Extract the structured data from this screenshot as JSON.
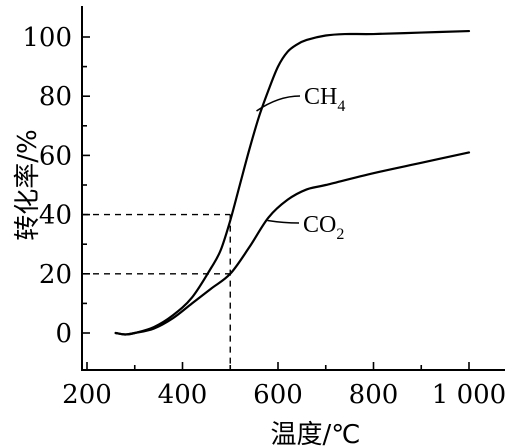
{
  "chart_data": {
    "type": "line",
    "xlabel": "温度/℃",
    "ylabel": "转化率/%",
    "xlim": [
      200,
      1000
    ],
    "ylim": [
      -3,
      105
    ],
    "x_ticks": [
      200,
      400,
      600,
      800,
      1000
    ],
    "x_tick_labels": [
      "200",
      "400",
      "600",
      "800",
      "1 000"
    ],
    "y_ticks": [
      0,
      20,
      40,
      60,
      80,
      100
    ],
    "y_tick_labels": [
      "0",
      "20",
      "40",
      "60",
      "80",
      "100"
    ],
    "grid": false,
    "series": [
      {
        "name": "CH4",
        "label_main": "CH",
        "label_sub": "4",
        "x": [
          260,
          280,
          300,
          340,
          380,
          420,
          460,
          480,
          500,
          520,
          540,
          560,
          580,
          600,
          620,
          640,
          660,
          700,
          740,
          800,
          900,
          1000
        ],
        "y": [
          0,
          -0.5,
          0,
          2,
          6,
          12,
          22,
          28,
          38,
          50,
          62,
          73,
          82,
          90,
          95,
          97.5,
          99,
          100.5,
          101,
          101,
          101.5,
          102
        ]
      },
      {
        "name": "CO2",
        "label_main": "CO",
        "label_sub": "2",
        "x": [
          260,
          280,
          300,
          340,
          380,
          420,
          460,
          500,
          540,
          580,
          620,
          660,
          700,
          800,
          900,
          1000
        ],
        "y": [
          0,
          -0.5,
          0,
          1.5,
          5,
          10,
          15,
          20,
          29,
          39,
          45,
          48.5,
          50,
          54,
          57.5,
          61
        ]
      }
    ],
    "reference_lines": [
      {
        "x": 500,
        "y": 40
      },
      {
        "x": 500,
        "y": 20
      }
    ]
  }
}
